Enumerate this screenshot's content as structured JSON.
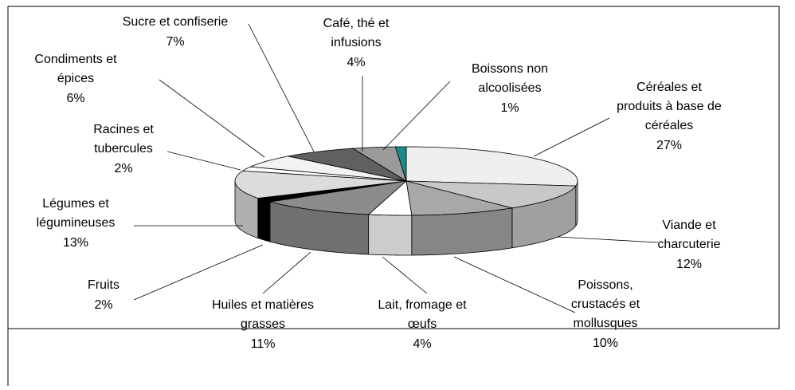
{
  "chart_data": {
    "type": "pie3d",
    "categories": [
      [
        "Céréales et",
        "produits à base de",
        "céréales"
      ],
      [
        "Viande et",
        "charcuterie"
      ],
      [
        "Poissons,",
        "crustacés et",
        "mollusques"
      ],
      [
        "Lait, fromage et",
        "œufs"
      ],
      [
        "Huiles et matières",
        "grasses"
      ],
      [
        "Fruits"
      ],
      [
        "Légumes et",
        "légumineuses"
      ],
      [
        "Racines et",
        "tubercules"
      ],
      [
        "Condiments et",
        "épices"
      ],
      [
        "Sucre et confiserie"
      ],
      [
        "Café, thé et",
        "infusions"
      ],
      [
        "Boissons non",
        "alcoolisées"
      ]
    ],
    "values": [
      27,
      12,
      10,
      4,
      11,
      2,
      13,
      2,
      6,
      7,
      4,
      1
    ],
    "value_labels": [
      "27%",
      "12%",
      "10%",
      "4%",
      "11%",
      "2%",
      "13%",
      "2%",
      "6%",
      "7%",
      "4%",
      "1%"
    ],
    "colors": [
      "#efefef",
      "#c8c8c8",
      "#a8a8a8",
      "#ffffff",
      "#8c8c8c",
      "#000000",
      "#dcdcdc",
      "#ffffff",
      "#f2f2f2",
      "#606060",
      "#9a9a9a",
      "#1a8a8a"
    ]
  }
}
